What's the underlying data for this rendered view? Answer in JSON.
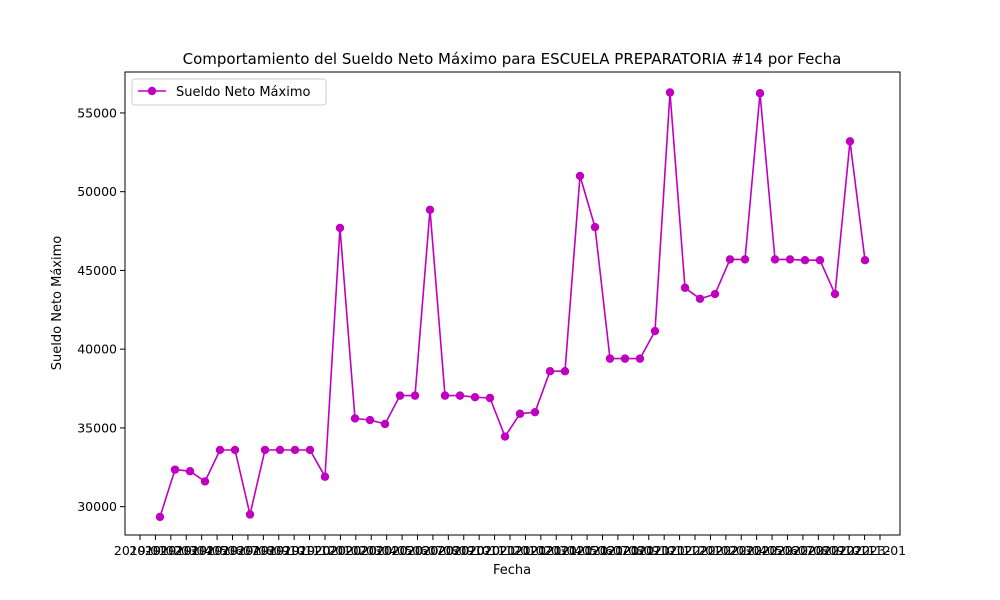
{
  "chart_data": {
    "type": "line",
    "title": "Comportamiento del Sueldo Neto Máximo para ESCUELA PREPARATORIA #14 por Fecha",
    "xlabel": "Fecha",
    "ylabel": "Sueldo Neto Máximo",
    "legend": {
      "position": "top-left",
      "entries": [
        "Sueldo Neto Máximo"
      ]
    },
    "grid": false,
    "ylim": [
      28200,
      57600
    ],
    "yticks": [
      30000,
      35000,
      40000,
      45000,
      50000,
      55000
    ],
    "x_tick_text": "2019-01…2022-01 (49 overlapping monthly date labels)",
    "color": "#bf00bf",
    "series": [
      {
        "name": "Sueldo Neto Máximo",
        "values": [
          29350,
          32350,
          32250,
          31600,
          33600,
          33600,
          29500,
          33600,
          33600,
          33600,
          33600,
          31900,
          47700,
          35600,
          35500,
          35250,
          37050,
          37050,
          48850,
          37050,
          37050,
          36950,
          36900,
          34450,
          35900,
          36000,
          38600,
          38600,
          51000,
          47750,
          39400,
          39400,
          39400,
          41150,
          56300,
          43900,
          43200,
          43500,
          45700,
          45700,
          56250,
          45700,
          45700,
          45650,
          45650,
          43500,
          53200,
          45650
        ]
      }
    ]
  }
}
